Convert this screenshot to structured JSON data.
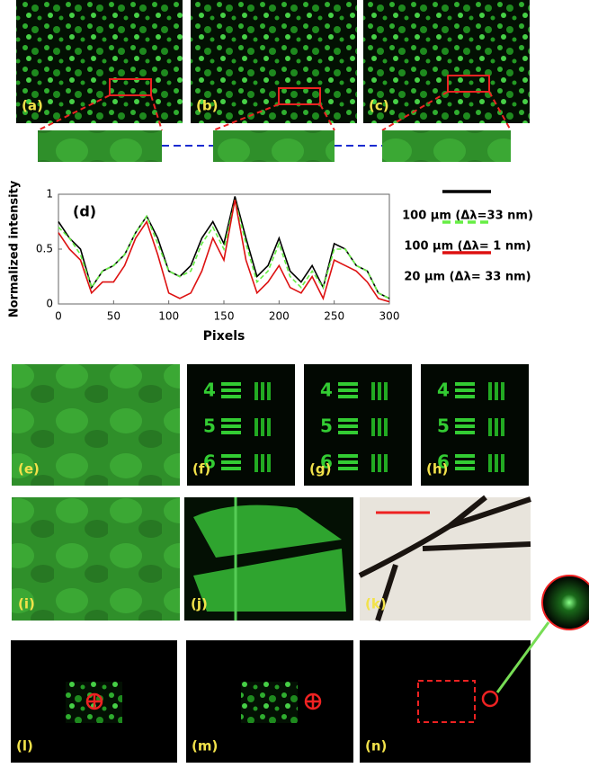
{
  "panels": {
    "labels": [
      "(a)",
      "(b)",
      "(c)",
      "(e)",
      "(f)",
      "(g)",
      "(h)",
      "(i)",
      "(j)",
      "(k)",
      "(l)",
      "(m)",
      "(n)"
    ],
    "usaf_groups": [
      "4",
      "5",
      "6"
    ]
  },
  "chart_data": {
    "type": "line",
    "annotation": "(d)",
    "x_label": "Pixels",
    "y_label": "Normalized intensity",
    "x": [
      0,
      10,
      20,
      30,
      40,
      50,
      60,
      70,
      80,
      90,
      100,
      110,
      120,
      130,
      140,
      150,
      160,
      170,
      180,
      190,
      200,
      210,
      220,
      230,
      240,
      250,
      260,
      270,
      280,
      290,
      300
    ],
    "series": [
      {
        "name": "100 µm (Δλ=33 nm)",
        "color": "#000000",
        "dash": false,
        "values": [
          0.75,
          0.6,
          0.5,
          0.15,
          0.3,
          0.35,
          0.45,
          0.65,
          0.8,
          0.6,
          0.3,
          0.25,
          0.35,
          0.6,
          0.75,
          0.55,
          0.98,
          0.6,
          0.25,
          0.35,
          0.6,
          0.3,
          0.2,
          0.35,
          0.15,
          0.55,
          0.5,
          0.35,
          0.3,
          0.1,
          0.05
        ]
      },
      {
        "name": "100 µm (Δλ= 1 nm)",
        "color": "#66ee44",
        "dash": true,
        "values": [
          0.7,
          0.6,
          0.45,
          0.15,
          0.3,
          0.35,
          0.45,
          0.65,
          0.8,
          0.55,
          0.3,
          0.25,
          0.3,
          0.55,
          0.7,
          0.5,
          0.95,
          0.55,
          0.2,
          0.3,
          0.55,
          0.25,
          0.15,
          0.3,
          0.15,
          0.5,
          0.5,
          0.35,
          0.3,
          0.1,
          0.05
        ]
      },
      {
        "name": "20 µm (Δλ= 33 nm)",
        "color": "#dd1111",
        "dash": false,
        "values": [
          0.65,
          0.5,
          0.4,
          0.1,
          0.2,
          0.2,
          0.35,
          0.6,
          0.75,
          0.45,
          0.1,
          0.05,
          0.1,
          0.3,
          0.6,
          0.4,
          0.95,
          0.4,
          0.1,
          0.2,
          0.35,
          0.15,
          0.1,
          0.25,
          0.05,
          0.4,
          0.35,
          0.3,
          0.2,
          0.05,
          0.02
        ]
      }
    ],
    "xlim": [
      0,
      300
    ],
    "ylim": [
      0,
      1
    ],
    "xticks": [
      0,
      50,
      100,
      150,
      200,
      250,
      300
    ],
    "yticks": [
      0,
      0.5,
      1
    ],
    "legend": "right"
  }
}
